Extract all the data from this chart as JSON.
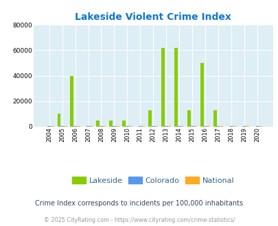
{
  "title": "Lakeside Violent Crime Index",
  "years": [
    2004,
    2005,
    2006,
    2007,
    2008,
    2009,
    2010,
    2011,
    2012,
    2013,
    2014,
    2015,
    2016,
    2017,
    2018,
    2019,
    2020
  ],
  "lakeside": [
    0,
    10000,
    40000,
    0,
    5000,
    5000,
    5000,
    0,
    13000,
    62000,
    62000,
    13000,
    50000,
    13000,
    0,
    0,
    0
  ],
  "colorado": [
    500,
    500,
    500,
    500,
    500,
    500,
    500,
    500,
    500,
    500,
    500,
    500,
    500,
    500,
    500,
    500,
    500
  ],
  "national": [
    350,
    350,
    350,
    350,
    350,
    350,
    350,
    350,
    350,
    350,
    350,
    350,
    350,
    350,
    350,
    350,
    350
  ],
  "lakeside_color": "#88cc00",
  "colorado_color": "#5599ee",
  "national_color": "#ffaa22",
  "bg_color": "#ddeef5",
  "ylim": [
    0,
    80000
  ],
  "yticks": [
    0,
    20000,
    40000,
    60000,
    80000
  ],
  "bar_width": 0.25,
  "subtitle": "Crime Index corresponds to incidents per 100,000 inhabitants",
  "footer": "© 2025 CityRating.com - https://www.cityrating.com/crime-statistics/",
  "title_color": "#1177cc",
  "legend_text_color": "#336688",
  "subtitle_color": "#334466",
  "footer_color": "#999999"
}
